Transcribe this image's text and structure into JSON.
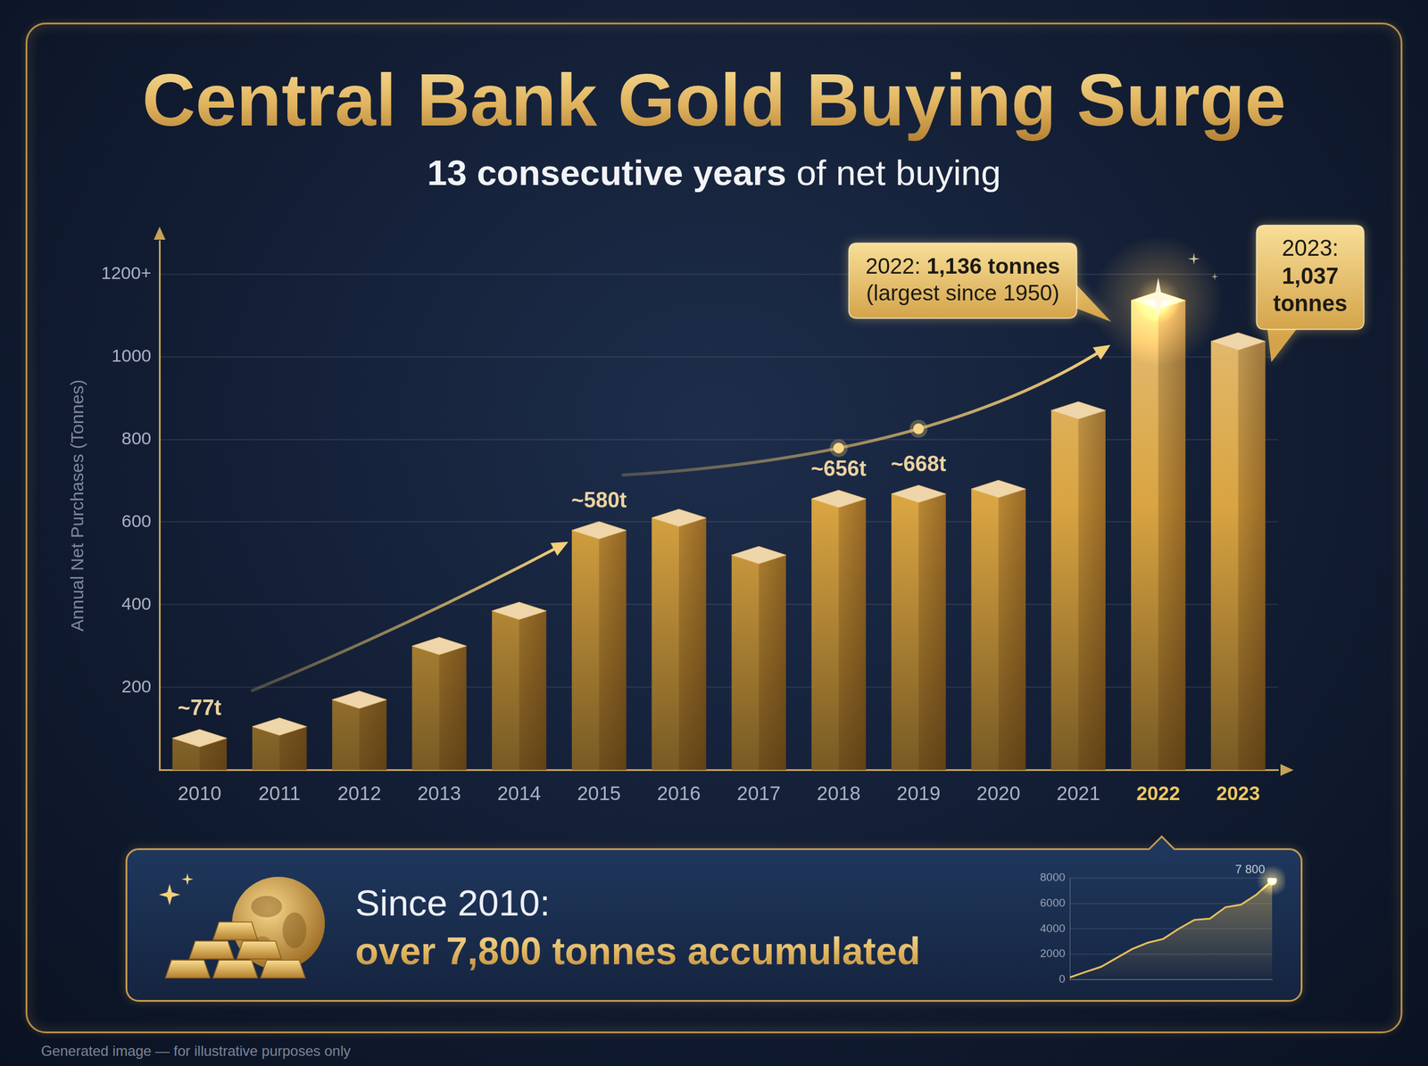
{
  "chart_data": [
    {
      "type": "bar",
      "title": "Central Bank Gold Buying Surge",
      "subtitle": [
        "13 consecutive years",
        "of net buying"
      ],
      "y_label": "Annual Net Purchases (Tonnes)",
      "categories": [
        "2010",
        "2011",
        "2012",
        "2013",
        "2014",
        "2015",
        "2016",
        "2017",
        "2018",
        "2019",
        "2020",
        "2021",
        "2022",
        "2023"
      ],
      "values": [
        77,
        105,
        170,
        300,
        385,
        580,
        610,
        520,
        656,
        668,
        680,
        870,
        1136,
        1037
      ],
      "value_labels": [
        "~77t",
        null,
        null,
        null,
        null,
        "~580t",
        null,
        null,
        "~656t",
        "~668t",
        null,
        null,
        null,
        null
      ],
      "data_labels": true,
      "color": "#d9a441",
      "ylim": [
        0,
        1280
      ],
      "yticks": [
        200,
        400,
        600,
        800,
        1000,
        {
          "value": 1200,
          "label": "1200+"
        }
      ],
      "grid": true,
      "annotations": [
        {
          "category": "2022",
          "lines": [
            "2022: 1,136 tonnes",
            "(largest since 1950)"
          ]
        },
        {
          "category": "2023",
          "lines": [
            "2023:",
            "1,037",
            "tonnes"
          ]
        }
      ]
    },
    {
      "type": "line",
      "title": [
        "Since 2010:",
        "over 7,800 tonnes accumulated"
      ],
      "categories": [
        null,
        null,
        null,
        null,
        null,
        null,
        null,
        null,
        null,
        null,
        null,
        null,
        null,
        null
      ],
      "values": [
        170,
        600,
        1000,
        1700,
        2400,
        2900,
        3200,
        4000,
        4700,
        4800,
        5700,
        5900,
        6700,
        7800
      ],
      "value_labels": [
        null,
        null,
        null,
        null,
        null,
        null,
        null,
        null,
        null,
        null,
        null,
        null,
        null,
        "7 800"
      ],
      "data_labels": true,
      "color": "#e8bf5c",
      "ylim": [
        0,
        8000
      ],
      "yticks": [
        0,
        2000,
        4000,
        6000,
        8000
      ],
      "tick_labels": "y",
      "grid": true
    }
  ],
  "footer": "Generated image — for illustrative purposes only"
}
